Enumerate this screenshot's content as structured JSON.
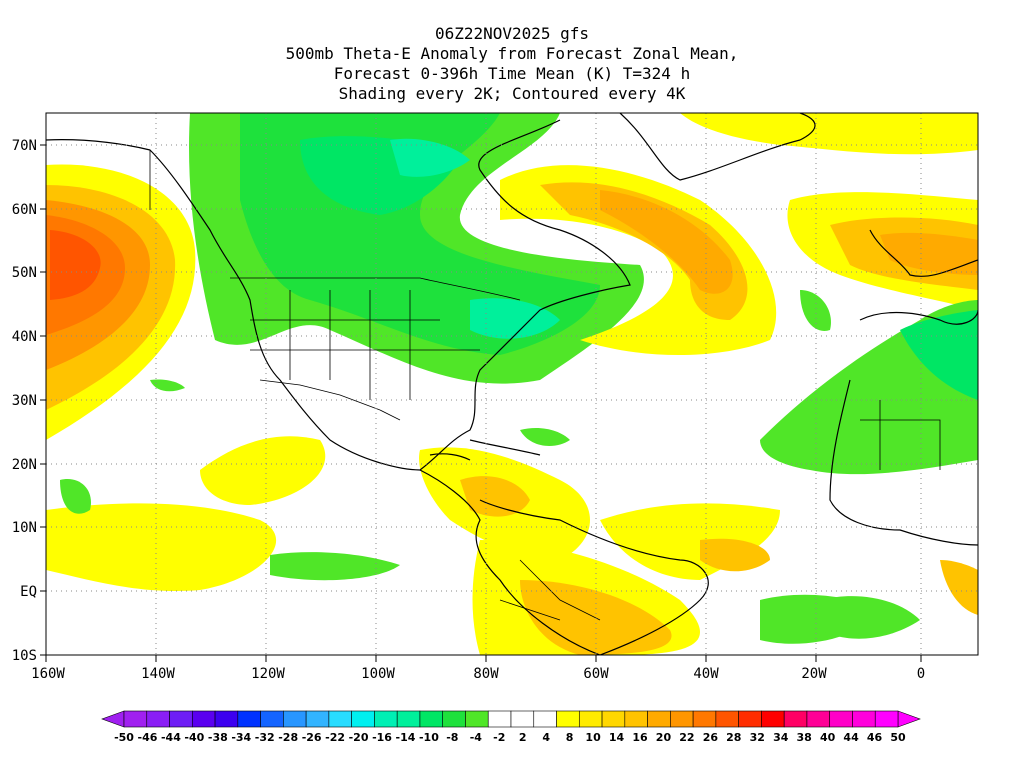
{
  "title_lines": [
    "06Z22NOV2025 gfs",
    "500mb Theta-E Anomaly from Forecast Zonal Mean,",
    "Forecast 0-396h Time Mean (K) T=324 h",
    "Shading every 2K; Contoured every 4K"
  ],
  "map": {
    "lon_ticks": [
      "160W",
      "140W",
      "120W",
      "100W",
      "80W",
      "60W",
      "40W",
      "20W",
      "0"
    ],
    "lat_ticks": [
      "70N",
      "60N",
      "50N",
      "40N",
      "30N",
      "20N",
      "10N",
      "EQ",
      "10S"
    ],
    "grid": "dotted"
  },
  "colorbar": {
    "labels": [
      "-50",
      "-46",
      "-44",
      "-40",
      "-38",
      "-34",
      "-32",
      "-28",
      "-26",
      "-22",
      "-20",
      "-16",
      "-14",
      "-10",
      "-8",
      "-4",
      "-2",
      "2",
      "4",
      "8",
      "10",
      "14",
      "16",
      "20",
      "22",
      "26",
      "28",
      "32",
      "34",
      "38",
      "40",
      "44",
      "46",
      "50"
    ],
    "colors": [
      "#a020f0",
      "#8a1ef5",
      "#6e1ef5",
      "#5a00f0",
      "#3c00f0",
      "#0032ff",
      "#1464ff",
      "#2896ff",
      "#32b4ff",
      "#28dcff",
      "#00f0f0",
      "#00f0b4",
      "#00f09b",
      "#00e664",
      "#1ee13c",
      "#50e628",
      "#ffffff",
      "#ffffff",
      "#ffffff",
      "#ffff00",
      "#ffeb00",
      "#ffd700",
      "#ffc300",
      "#ffaa00",
      "#ff9600",
      "#ff7800",
      "#ff5500",
      "#ff2d00",
      "#ff0000",
      "#ff0064",
      "#ff0096",
      "#ff00c8",
      "#ff00dc",
      "#ff00ff"
    ]
  }
}
